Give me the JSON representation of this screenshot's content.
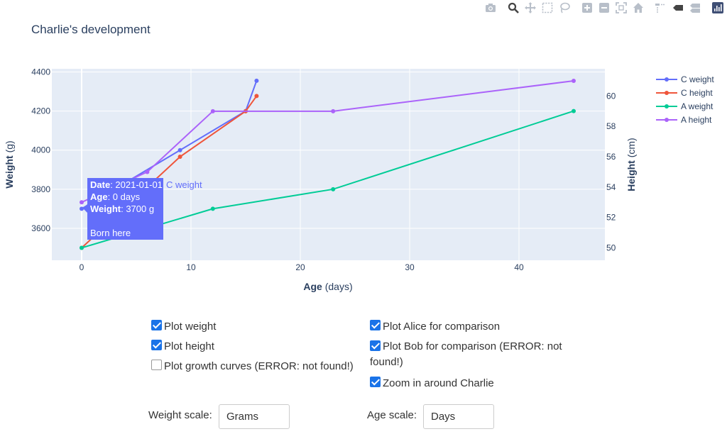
{
  "chart_data": {
    "type": "line",
    "title": "Charlie's development",
    "xlabel_bold": "Age",
    "xlabel_unit": " (days)",
    "ylabel_left_bold": "Weight",
    "ylabel_left_unit": " (g)",
    "ylabel_right_bold": "Height",
    "ylabel_right_unit": " (cm)",
    "xlim": [
      -2.8,
      47.5
    ],
    "ylim_left": [
      3484,
      4410
    ],
    "ylim_right": [
      49.6,
      62.1
    ],
    "x_ticks": [
      0,
      10,
      20,
      30,
      40
    ],
    "y_left_ticks": [
      3600,
      3800,
      4000,
      4200,
      4400
    ],
    "y_right_ticks": [
      50,
      52,
      54,
      56,
      58,
      60
    ],
    "series": [
      {
        "name": "C weight",
        "axis": "left",
        "color": "#636efa",
        "x": [
          0,
          9,
          15,
          16
        ],
        "y": [
          3700,
          4000,
          4200,
          4355
        ]
      },
      {
        "name": "C height",
        "axis": "right",
        "color": "#ef553b",
        "x": [
          0,
          9,
          15,
          16
        ],
        "y": [
          50,
          56,
          59,
          60
        ]
      },
      {
        "name": "A weight",
        "axis": "left",
        "color": "#00cc96",
        "x": [
          0,
          12,
          23,
          45
        ],
        "y": [
          3500,
          3700,
          3800,
          4200
        ]
      },
      {
        "name": "A height",
        "axis": "right",
        "color": "#ab63fa",
        "x": [
          0,
          6,
          12,
          23,
          45
        ],
        "y": [
          53,
          55,
          59,
          59,
          61
        ]
      }
    ],
    "grid": true,
    "legend_position": "top-right",
    "background": "#e5ecf6"
  },
  "tooltip": {
    "date_label": "Date",
    "date_value": ": 2021-01-01",
    "age_label": "Age",
    "age_value": ": 0 days",
    "weight_label": "Weight",
    "weight_value": ": 3700 g",
    "note": "Born here",
    "series_name": "C weight",
    "color": "#636efa"
  },
  "modebar_icons": [
    "camera-icon",
    "zoom-icon",
    "pan-icon",
    "box-select-icon",
    "lasso-select-icon",
    "zoom-in-icon",
    "zoom-out-icon",
    "autoscale-icon",
    "reset-axes-icon",
    "spike-lines-icon",
    "hover-closest-icon",
    "hover-compare-icon",
    "plotly-logo-icon"
  ],
  "controls": {
    "plot_weight": {
      "label": "Plot weight",
      "checked": true
    },
    "plot_height": {
      "label": "Plot height",
      "checked": true
    },
    "plot_growth": {
      "label": "Plot growth curves (ERROR: not found!)",
      "checked": false
    },
    "plot_alice": {
      "label": "Plot Alice for comparison",
      "checked": true
    },
    "plot_bob": {
      "label": "Plot Bob for comparison (ERROR: not found!)",
      "checked": true
    },
    "zoom_charlie": {
      "label": "Zoom in around Charlie",
      "checked": true
    },
    "weight_scale": {
      "label": "Weight scale:",
      "value": "Grams"
    },
    "age_scale": {
      "label": "Age scale:",
      "value": "Days"
    }
  }
}
